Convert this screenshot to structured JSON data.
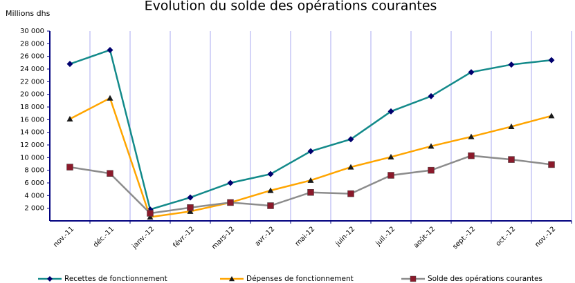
{
  "chart_data": {
    "type": "line",
    "title": "Evolution du solde des opérations courantes",
    "y_label": "Millions dhs",
    "categories": [
      "nov.-11",
      "déc.-11",
      "janv.-12",
      "févr.-12",
      "mars-12",
      "avr.-12",
      "mai-12",
      "juin-12",
      "juil.-12",
      "août-12",
      "sept.-12",
      "oct.-12",
      "nov.-12"
    ],
    "series": [
      {
        "name": "Recettes de fonctionnement",
        "color": "#138a8a",
        "marker_color": "#00006e",
        "marker": "diamond",
        "values": [
          24800,
          27000,
          1800,
          3700,
          6000,
          7400,
          11000,
          12900,
          17300,
          19700,
          23500,
          24700,
          25400
        ]
      },
      {
        "name": "Dépenses de fonctionnement",
        "color": "#ffa500",
        "marker_color": "#1a1a1a",
        "marker": "triangle",
        "values": [
          16100,
          19400,
          600,
          1500,
          2900,
          4800,
          6400,
          8500,
          10100,
          11800,
          13300,
          14900,
          16600
        ]
      },
      {
        "name": "Solde des opérations courantes",
        "color": "#8c8c8c",
        "marker_color": "#8b1a2b",
        "marker": "square",
        "values": [
          8500,
          7500,
          1200,
          2100,
          2900,
          2400,
          4500,
          4300,
          7200,
          8000,
          10300,
          9700,
          8900
        ]
      }
    ],
    "ylim": [
      0,
      30000
    ],
    "yticks": [
      {
        "value": 2000,
        "label": "2 000"
      },
      {
        "value": 4000,
        "label": "4 000"
      },
      {
        "value": 6000,
        "label": "6 000"
      },
      {
        "value": 8000,
        "label": "8 000"
      },
      {
        "value": 10000,
        "label": "10 000"
      },
      {
        "value": 12000,
        "label": "12 000"
      },
      {
        "value": 14000,
        "label": "14 000"
      },
      {
        "value": 16000,
        "label": "16 000"
      },
      {
        "value": 18000,
        "label": "18 000"
      },
      {
        "value": 20000,
        "label": "20 000"
      },
      {
        "value": 22000,
        "label": "22 000"
      },
      {
        "value": 24000,
        "label": "24 000"
      },
      {
        "value": 26000,
        "label": "26 000"
      },
      {
        "value": 28000,
        "label": "28 000"
      },
      {
        "value": 30000,
        "label": "30 000"
      }
    ],
    "legend": "bottom"
  }
}
